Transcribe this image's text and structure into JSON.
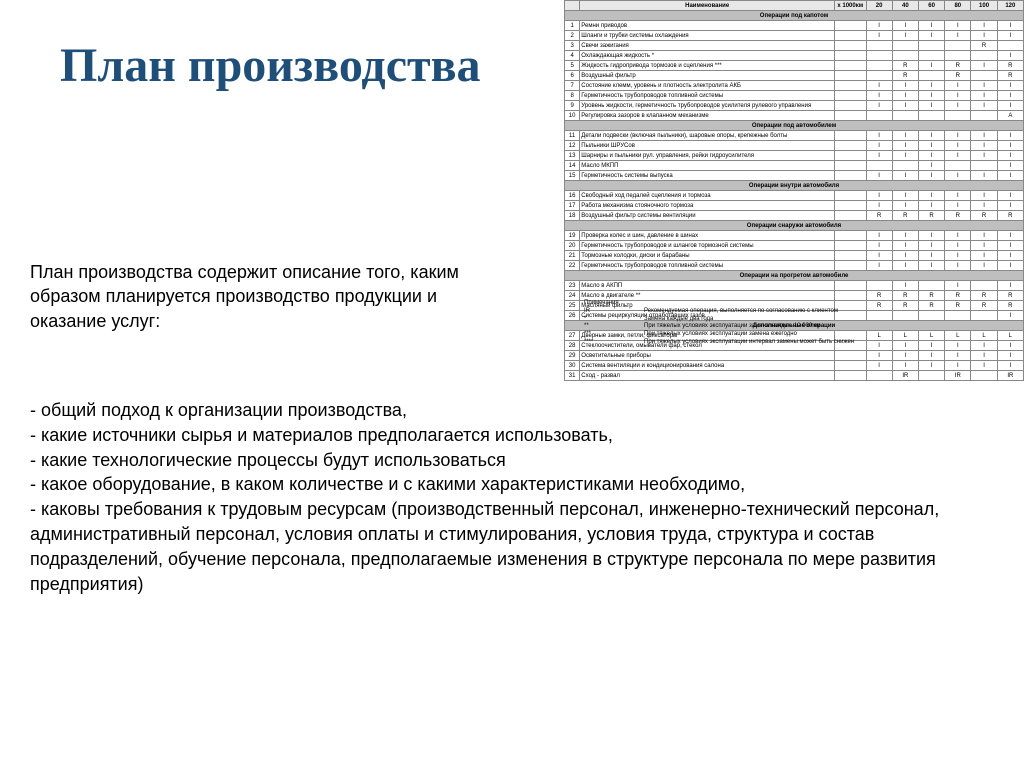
{
  "title": "План производства",
  "description": "План производства содержит описание того, каким образом планируется производство продукции и оказание услуг:",
  "bullets": [
    "- общий подход к организации производства,",
    "-  какие источники сырья и материалов предполагается использовать,",
    "-  какие технологические процессы будут использоваться",
    "-  какое оборудование, в каком количестве и с какими характеристиками необходимо,",
    "-  каковы требования к трудовым ресурсам (производственный персонал, инженерно-технический персонал, административный персонал, условия оплаты и стимулирования, условия труда, структура и состав подразделений, обучение персонала, предполагаемые изменения в структуре персонала по мере развития предприятия)"
  ],
  "table": {
    "header_label": "Наименование",
    "unit_col": "x 1000км",
    "columns": [
      "20",
      "40",
      "60",
      "80",
      "100",
      "120"
    ],
    "sections": [
      {
        "title": "Операции под капотом",
        "rows": [
          {
            "n": "1",
            "d": "Ремни приводов",
            "v": [
              "I",
              "I",
              "I",
              "I",
              "I",
              "I"
            ]
          },
          {
            "n": "2",
            "d": "Шланги и трубки системы охлаждения",
            "v": [
              "I",
              "I",
              "I",
              "I",
              "I",
              "I"
            ]
          },
          {
            "n": "3",
            "d": "Свечи зажигания",
            "v": [
              "",
              "",
              "",
              "",
              "R",
              ""
            ]
          },
          {
            "n": "4",
            "d": "Охлаждающая жидкость  *",
            "v": [
              "",
              "",
              "",
              "",
              "",
              "I"
            ]
          },
          {
            "n": "5",
            "d": "Жидкость гидропривода тормозов и сцепления  ***",
            "v": [
              "",
              "R",
              "I",
              "R",
              "I",
              "R"
            ]
          },
          {
            "n": "6",
            "d": "Воздушный фильтр",
            "v": [
              "",
              "R",
              "",
              "R",
              "",
              "R"
            ]
          },
          {
            "n": "7",
            "d": "Состояние клемм, уровень и плотность электролита АКБ",
            "v": [
              "I",
              "I",
              "I",
              "I",
              "I",
              "I"
            ]
          },
          {
            "n": "8",
            "d": "Герметичность трубопроводов топливной системы",
            "v": [
              "I",
              "I",
              "I",
              "I",
              "I",
              "I"
            ]
          },
          {
            "n": "9",
            "d": "Уровень жидкости, герметичность трубопроводов усилителя рулевого управления",
            "v": [
              "I",
              "I",
              "I",
              "I",
              "I",
              "I"
            ]
          },
          {
            "n": "10",
            "d": "Регулировка зазоров в клапанном механизме",
            "v": [
              "",
              "",
              "",
              "",
              "",
              "A"
            ]
          }
        ]
      },
      {
        "title": "Операции под автомобилем",
        "rows": [
          {
            "n": "11",
            "d": "Детали подвески (включая пыльники), шаровые опоры, крепежные болты",
            "v": [
              "I",
              "I",
              "I",
              "I",
              "I",
              "I"
            ]
          },
          {
            "n": "12",
            "d": "Пыльники ШРУСов",
            "v": [
              "I",
              "I",
              "I",
              "I",
              "I",
              "I"
            ]
          },
          {
            "n": "13",
            "d": "Шарниры и пыльники рул. управления, рейки гидроусилителя",
            "v": [
              "I",
              "I",
              "I",
              "I",
              "I",
              "I"
            ]
          },
          {
            "n": "14",
            "d": "Масло МКПП",
            "v": [
              "",
              "",
              "I",
              "",
              "",
              "I"
            ]
          },
          {
            "n": "15",
            "d": "Герметичность системы выпуска",
            "v": [
              "I",
              "I",
              "I",
              "I",
              "I",
              "I"
            ]
          }
        ]
      },
      {
        "title": "Операции внутри автомобиля",
        "rows": [
          {
            "n": "16",
            "d": "Свободный ход педалей сцепления и тормоза",
            "v": [
              "I",
              "I",
              "I",
              "I",
              "I",
              "I"
            ]
          },
          {
            "n": "17",
            "d": "Работа механизма стояночного тормоза",
            "v": [
              "I",
              "I",
              "I",
              "I",
              "I",
              "I"
            ]
          },
          {
            "n": "18",
            "d": "Воздушный фильтр системы вентиляции",
            "v": [
              "R",
              "R",
              "R",
              "R",
              "R",
              "R"
            ]
          }
        ]
      },
      {
        "title": "Операции снаружи автомобиля",
        "rows": [
          {
            "n": "19",
            "d": "Проверка колес и шин, давление в шинах",
            "v": [
              "I",
              "I",
              "I",
              "I",
              "I",
              "I"
            ]
          },
          {
            "n": "20",
            "d": "Герметичность трубопроводов и шлангов тормозной системы",
            "v": [
              "I",
              "I",
              "I",
              "I",
              "I",
              "I"
            ]
          },
          {
            "n": "21",
            "d": "Тормозные колодки, диски и барабаны",
            "v": [
              "I",
              "I",
              "I",
              "I",
              "I",
              "I"
            ]
          },
          {
            "n": "22",
            "d": "Герметичность трубопроводов топливной системы",
            "v": [
              "I",
              "I",
              "I",
              "I",
              "I",
              "I"
            ]
          }
        ]
      },
      {
        "title": "Операции на прогретом автомобиле",
        "rows": [
          {
            "n": "23",
            "d": "Масло в АКПП",
            "v": [
              "",
              "I",
              "",
              "I",
              "",
              "I"
            ]
          },
          {
            "n": "24",
            "d": "Масло в двигателе  **",
            "v": [
              "R",
              "R",
              "R",
              "R",
              "R",
              "R"
            ]
          },
          {
            "n": "25",
            "d": "Масляный фильтр",
            "v": [
              "R",
              "R",
              "R",
              "R",
              "R",
              "R"
            ]
          },
          {
            "n": "26",
            "d": "Системы рециркуляции отработавших газов",
            "v": [
              "",
              "",
              "",
              "",
              "",
              "I"
            ]
          }
        ]
      },
      {
        "title": "Дополнительные операции",
        "rows": [
          {
            "n": "27",
            "d": "Дверные замки, петли, фиксаторы",
            "v": [
              "L",
              "L",
              "L",
              "L",
              "L",
              "L"
            ]
          },
          {
            "n": "28",
            "d": "Стеклоочистители, омыватели фар, стекол",
            "v": [
              "I",
              "I",
              "I",
              "I",
              "I",
              "I"
            ]
          },
          {
            "n": "29",
            "d": "Осветительные приборы",
            "v": [
              "I",
              "I",
              "I",
              "I",
              "I",
              "I"
            ]
          },
          {
            "n": "30",
            "d": "Система вентиляции и кондиционирования салона",
            "v": [
              "I",
              "I",
              "I",
              "I",
              "I",
              "I"
            ]
          },
          {
            "n": "31",
            "d": "Сход - развал",
            "v": [
              "",
              "IR",
              "",
              "IR",
              "",
              "IR"
            ]
          }
        ]
      }
    ]
  },
  "legend": {
    "label": "Примечания",
    "rows": [
      {
        "k": "IR",
        "v": "Рекомендуемая операция, выполняется по согласованию с клиентом"
      },
      {
        "k": "*",
        "v": "Замена каждые два года"
      },
      {
        "k": "**",
        "v": "При тяжелых условиях эксплуатации замена каждые 10 000 км"
      },
      {
        "k": "***",
        "v": "При тяжелых условиях эксплуатации замена ежегодно"
      },
      {
        "k": "****",
        "v": "При тяжелых условиях эксплуатации интервал замены может быть снижен"
      }
    ]
  },
  "colors": {
    "title": "#1f4e79",
    "section_bg": "#bfbfbf",
    "header_bg": "#e8e8e8",
    "border": "#888888",
    "text": "#000000",
    "bg": "#ffffff"
  }
}
